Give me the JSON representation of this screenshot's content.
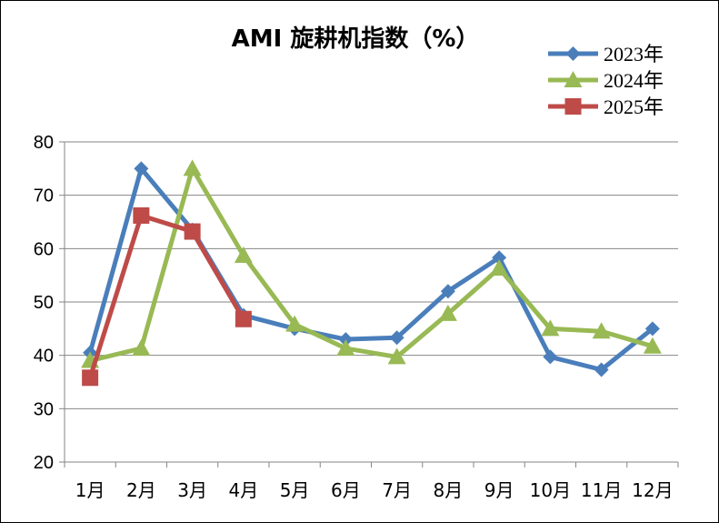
{
  "chart_data": {
    "type": "line",
    "title": "AMI 旋耕机指数（%）",
    "xlabel": "",
    "ylabel": "",
    "categories": [
      "1月",
      "2月",
      "3月",
      "4月",
      "5月",
      "6月",
      "7月",
      "8月",
      "9月",
      "10月",
      "11月",
      "12月"
    ],
    "ylim": [
      20,
      80
    ],
    "yticks": [
      20,
      30,
      40,
      50,
      60,
      70,
      80
    ],
    "grid": true,
    "legend_position": "top-right",
    "series": [
      {
        "name": "2023年",
        "color": "#4a7ebb",
        "marker": "diamond",
        "values": [
          40.5,
          75.0,
          63.5,
          47.5,
          45.0,
          43.0,
          43.3,
          52.0,
          58.3,
          39.7,
          37.3,
          45.0
        ]
      },
      {
        "name": "2024年",
        "color": "#98b954",
        "marker": "triangle",
        "values": [
          39.0,
          41.3,
          75.0,
          58.7,
          45.8,
          41.3,
          39.7,
          47.8,
          56.3,
          45.0,
          44.5,
          41.7
        ]
      },
      {
        "name": "2025年",
        "color": "#be4b48",
        "marker": "square",
        "values": [
          35.8,
          66.2,
          63.2,
          46.8,
          null,
          null,
          null,
          null,
          null,
          null,
          null,
          null
        ]
      }
    ]
  }
}
